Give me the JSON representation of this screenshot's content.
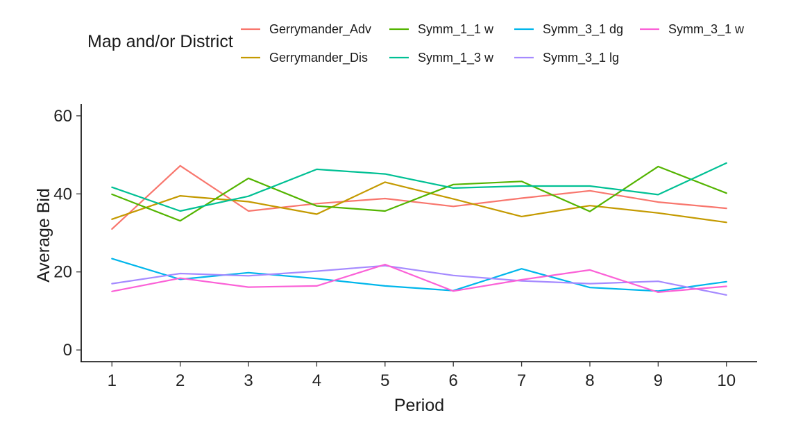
{
  "chart_data": {
    "type": "line",
    "xlabel": "Period",
    "ylabel": "Average Bid",
    "legend_title": "Map and/or District",
    "legend_position": "top",
    "grid": false,
    "x": [
      1,
      2,
      3,
      4,
      5,
      6,
      7,
      8,
      9,
      10
    ],
    "x_ticks": [
      "1",
      "2",
      "3",
      "4",
      "5",
      "6",
      "7",
      "8",
      "9",
      "10"
    ],
    "y_ticks": [
      "0",
      "20",
      "40",
      "60"
    ],
    "y_tick_values": [
      0,
      20,
      40,
      60
    ],
    "xlim": [
      0.55,
      10.45
    ],
    "ylim": [
      -3,
      63
    ],
    "series": [
      {
        "name": "Gerrymander_Adv",
        "color": "#f8766d",
        "values": [
          31,
          47.2,
          35.6,
          37.5,
          38.8,
          36.8,
          38.9,
          40.8,
          37.9,
          36.3
        ]
      },
      {
        "name": "Gerrymander_Dis",
        "color": "#c49a00",
        "values": [
          33.5,
          39.5,
          38,
          34.8,
          43,
          38.7,
          34.2,
          37,
          35.1,
          32.7
        ]
      },
      {
        "name": "Symm_1_1 w",
        "color": "#53b400",
        "values": [
          39.9,
          33.1,
          44,
          36.9,
          35.6,
          42.4,
          43.2,
          35.5,
          47,
          40.2
        ]
      },
      {
        "name": "Symm_1_3 w",
        "color": "#00c094",
        "values": [
          41.7,
          35.6,
          39.4,
          46.3,
          45.1,
          41.5,
          42,
          42,
          39.8,
          47.9
        ]
      },
      {
        "name": "Symm_3_1 dg",
        "color": "#00b6eb",
        "values": [
          23.4,
          18.1,
          19.8,
          18.3,
          16.4,
          15.2,
          20.8,
          16,
          15.1,
          17.5
        ]
      },
      {
        "name": "Symm_3_1 lg",
        "color": "#a58aff",
        "values": [
          17,
          19.6,
          19,
          20.2,
          21.6,
          19.1,
          17.7,
          17,
          17.6,
          14.1
        ]
      },
      {
        "name": "Symm_3_1 w",
        "color": "#fb61d7",
        "values": [
          15,
          18.4,
          16.1,
          16.4,
          21.9,
          15.1,
          18,
          20.5,
          14.8,
          16.3
        ]
      }
    ]
  }
}
